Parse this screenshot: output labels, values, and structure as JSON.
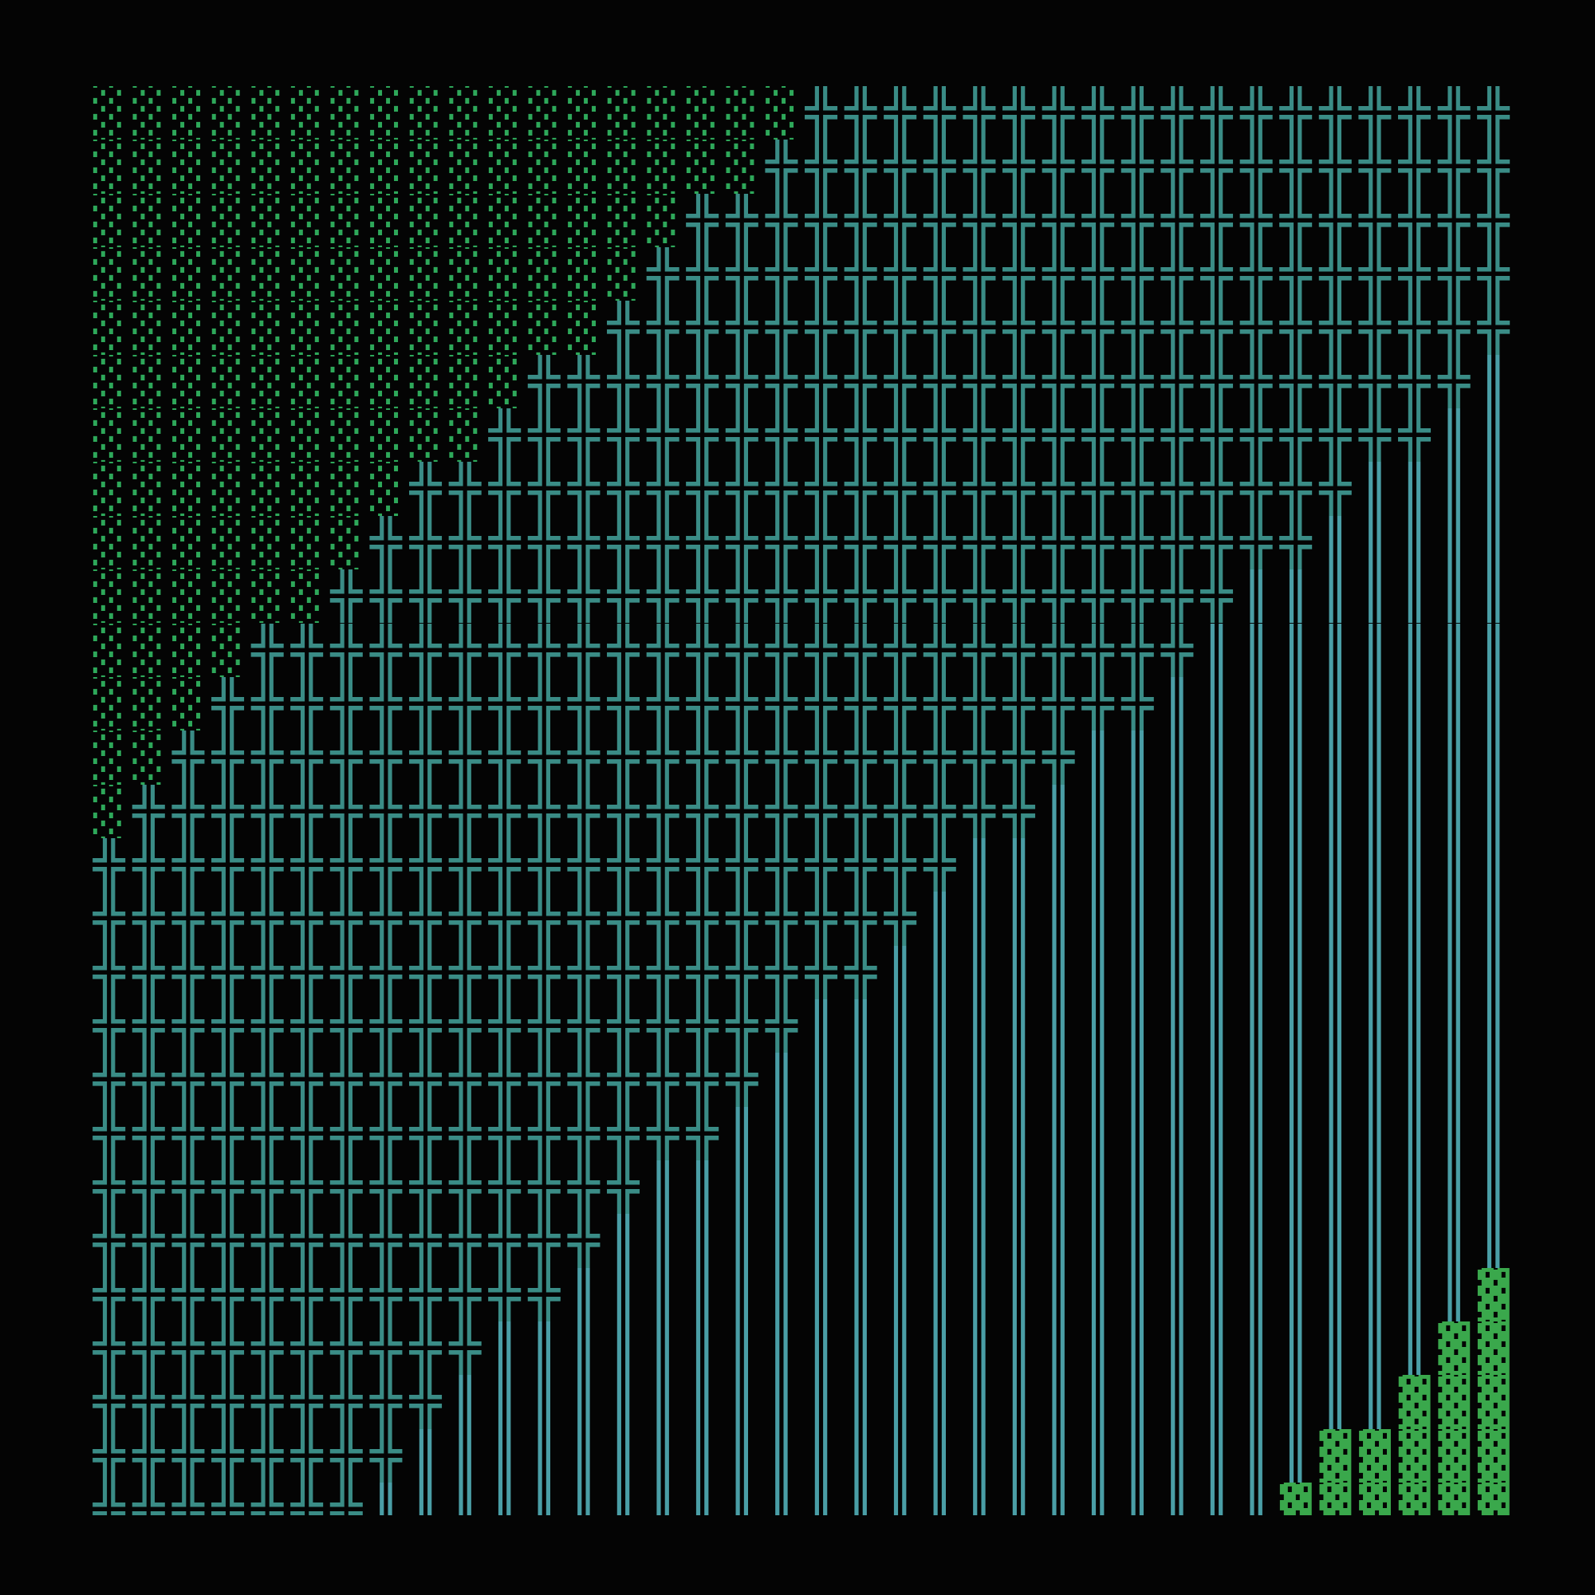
{
  "colors": {
    "background": "#040404",
    "░": "#2ea85a",
    "╬": "#3a8c86",
    "║": "#4a9ea6",
    "▓": "#3aa84c"
  },
  "rows": [
    [
      [
        "░",
        18
      ],
      [
        "╬",
        19
      ]
    ],
    [
      [
        "░",
        17
      ],
      [
        "╬",
        20
      ]
    ],
    [
      [
        "░",
        15
      ],
      [
        "╬",
        22
      ]
    ],
    [
      [
        "░",
        14
      ],
      [
        "╬",
        23
      ]
    ],
    [
      [
        "░",
        13
      ],
      [
        "╬",
        24
      ]
    ],
    [
      [
        "░",
        11
      ],
      [
        "╬",
        24
      ],
      [
        "║",
        2
      ]
    ],
    [
      [
        "░",
        10
      ],
      [
        "╬",
        24
      ],
      [
        "║",
        3
      ]
    ],
    [
      [
        "░",
        8
      ],
      [
        "╬",
        24
      ],
      [
        "║",
        5
      ]
    ],
    [
      [
        "░",
        7
      ],
      [
        "╬",
        24
      ],
      [
        "║",
        6
      ]
    ],
    [
      [
        "░",
        6
      ],
      [
        "╬",
        23
      ],
      [
        "║",
        8
      ]
    ],
    [
      [
        "░",
        4
      ],
      [
        "╬",
        24
      ],
      [
        "║",
        9
      ]
    ],
    [
      [
        "░",
        3
      ],
      [
        "╬",
        24
      ],
      [
        "║",
        10
      ]
    ],
    [
      [
        "░",
        2
      ],
      [
        "╬",
        23
      ],
      [
        "║",
        12
      ]
    ],
    [
      [
        "░",
        1
      ],
      [
        "╬",
        23
      ],
      [
        "║",
        13
      ]
    ],
    [
      [
        "╬",
        22
      ],
      [
        "║",
        15
      ]
    ],
    [
      [
        "╬",
        21
      ],
      [
        "║",
        16
      ]
    ],
    [
      [
        "╬",
        20
      ],
      [
        "║",
        17
      ]
    ],
    [
      [
        "╬",
        18
      ],
      [
        "║",
        19
      ]
    ],
    [
      [
        "╬",
        17
      ],
      [
        "║",
        20
      ]
    ],
    [
      [
        "╬",
        16
      ],
      [
        "║",
        21
      ]
    ],
    [
      [
        "╬",
        14
      ],
      [
        "║",
        23
      ]
    ],
    [
      [
        "╬",
        13
      ],
      [
        "║",
        24
      ]
    ],
    [
      [
        "╬",
        12
      ],
      [
        "║",
        23
      ],
      [
        "▓",
        2
      ]
    ],
    [
      [
        "╬",
        10
      ],
      [
        "║",
        24
      ],
      [
        "▓",
        3
      ]
    ],
    [
      [
        "╬",
        9
      ],
      [
        "║",
        24
      ],
      [
        "▓",
        4
      ]
    ],
    [
      [
        "╬",
        8
      ],
      [
        "║",
        23
      ],
      [
        "▓",
        6
      ]
    ],
    [
      [
        "╬",
        7
      ],
      [
        "║",
        23
      ],
      [
        "▓",
        7
      ]
    ]
  ]
}
